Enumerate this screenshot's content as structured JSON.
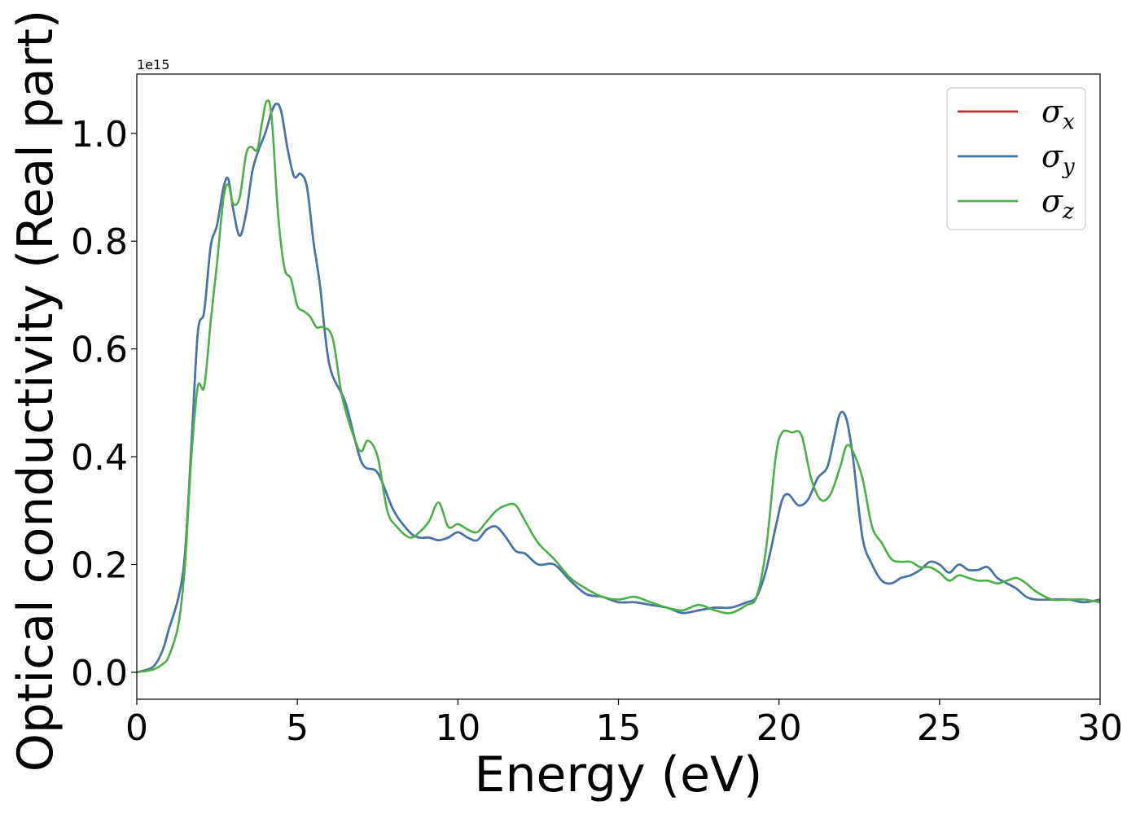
{
  "chart_data": {
    "type": "line",
    "title": "",
    "xlabel": "Energy (eV)",
    "ylabel": "Optical conductivity (Real part)",
    "y_offset_label": "1e15",
    "xlim": [
      0,
      30
    ],
    "ylim": [
      -0.05,
      1.11
    ],
    "xticks": [
      0,
      5,
      10,
      15,
      20,
      25,
      30
    ],
    "xtick_labels": [
      "0",
      "5",
      "10",
      "15",
      "20",
      "25",
      "30"
    ],
    "yticks": [
      0.0,
      0.2,
      0.4,
      0.6,
      0.8,
      1.0
    ],
    "ytick_labels": [
      "0.0",
      "0.2",
      "0.4",
      "0.6",
      "0.8",
      "1.0"
    ],
    "grid": false,
    "legend_position": "top-right",
    "legend": [
      {
        "symbol": "σ",
        "sub": "x",
        "color": "#d62728"
      },
      {
        "symbol": "σ",
        "sub": "y",
        "color": "#4477aa"
      },
      {
        "symbol": "σ",
        "sub": "z",
        "color": "#4daf4a"
      }
    ],
    "series": [
      {
        "name": "σx",
        "color": "#d62728",
        "x": [
          0,
          0.5,
          0.8,
          1.0,
          1.3,
          1.5,
          1.7,
          1.9,
          2.1,
          2.3,
          2.5,
          2.7,
          2.85,
          3.0,
          3.2,
          3.4,
          3.6,
          3.8,
          4.0,
          4.2,
          4.35,
          4.5,
          4.7,
          4.9,
          5.1,
          5.3,
          5.5,
          5.7,
          6.0,
          6.5,
          7.0,
          7.5,
          8.0,
          8.5,
          8.8,
          9.1,
          9.4,
          9.7,
          10.0,
          10.3,
          10.6,
          10.9,
          11.2,
          11.5,
          11.8,
          12.1,
          12.5,
          13.0,
          13.5,
          14.0,
          14.5,
          15.0,
          15.5,
          16.0,
          16.5,
          17.0,
          17.5,
          18.0,
          18.5,
          19.0,
          19.3,
          19.6,
          19.9,
          20.1,
          20.3,
          20.6,
          20.9,
          21.2,
          21.5,
          21.7,
          21.9,
          22.1,
          22.3,
          22.6,
          22.9,
          23.2,
          23.5,
          23.8,
          24.1,
          24.4,
          24.7,
          25.0,
          25.3,
          25.6,
          25.9,
          26.2,
          26.5,
          26.8,
          27.1,
          27.4,
          27.7,
          28.0,
          28.5,
          29.0,
          29.5,
          30.0
        ],
        "values": [
          0.0,
          0.01,
          0.04,
          0.08,
          0.14,
          0.22,
          0.42,
          0.63,
          0.67,
          0.79,
          0.83,
          0.9,
          0.915,
          0.86,
          0.81,
          0.85,
          0.93,
          0.97,
          1.0,
          1.04,
          1.055,
          1.04,
          0.97,
          0.92,
          0.925,
          0.9,
          0.8,
          0.72,
          0.57,
          0.5,
          0.39,
          0.37,
          0.3,
          0.26,
          0.25,
          0.25,
          0.245,
          0.25,
          0.26,
          0.25,
          0.245,
          0.265,
          0.27,
          0.25,
          0.225,
          0.22,
          0.2,
          0.2,
          0.17,
          0.145,
          0.14,
          0.13,
          0.13,
          0.125,
          0.12,
          0.11,
          0.115,
          0.12,
          0.12,
          0.13,
          0.14,
          0.19,
          0.27,
          0.32,
          0.33,
          0.31,
          0.32,
          0.36,
          0.38,
          0.43,
          0.48,
          0.47,
          0.4,
          0.25,
          0.2,
          0.17,
          0.165,
          0.175,
          0.18,
          0.19,
          0.205,
          0.2,
          0.185,
          0.2,
          0.19,
          0.19,
          0.195,
          0.175,
          0.165,
          0.155,
          0.14,
          0.135,
          0.135,
          0.135,
          0.13,
          0.135
        ]
      },
      {
        "name": "σy",
        "color": "#4477aa",
        "x": [
          0,
          0.5,
          0.8,
          1.0,
          1.3,
          1.5,
          1.7,
          1.9,
          2.1,
          2.3,
          2.5,
          2.7,
          2.85,
          3.0,
          3.2,
          3.4,
          3.6,
          3.8,
          4.0,
          4.2,
          4.35,
          4.5,
          4.7,
          4.9,
          5.1,
          5.3,
          5.5,
          5.7,
          6.0,
          6.5,
          7.0,
          7.5,
          8.0,
          8.5,
          8.8,
          9.1,
          9.4,
          9.7,
          10.0,
          10.3,
          10.6,
          10.9,
          11.2,
          11.5,
          11.8,
          12.1,
          12.5,
          13.0,
          13.5,
          14.0,
          14.5,
          15.0,
          15.5,
          16.0,
          16.5,
          17.0,
          17.5,
          18.0,
          18.5,
          19.0,
          19.3,
          19.6,
          19.9,
          20.1,
          20.3,
          20.6,
          20.9,
          21.2,
          21.5,
          21.7,
          21.9,
          22.1,
          22.3,
          22.6,
          22.9,
          23.2,
          23.5,
          23.8,
          24.1,
          24.4,
          24.7,
          25.0,
          25.3,
          25.6,
          25.9,
          26.2,
          26.5,
          26.8,
          27.1,
          27.4,
          27.7,
          28.0,
          28.5,
          29.0,
          29.5,
          30.0
        ],
        "values": [
          0.0,
          0.01,
          0.04,
          0.08,
          0.14,
          0.22,
          0.42,
          0.63,
          0.67,
          0.79,
          0.83,
          0.9,
          0.915,
          0.86,
          0.81,
          0.85,
          0.93,
          0.97,
          1.0,
          1.04,
          1.055,
          1.04,
          0.97,
          0.92,
          0.925,
          0.9,
          0.8,
          0.72,
          0.57,
          0.5,
          0.39,
          0.37,
          0.3,
          0.26,
          0.25,
          0.25,
          0.245,
          0.25,
          0.26,
          0.25,
          0.245,
          0.265,
          0.27,
          0.25,
          0.225,
          0.22,
          0.2,
          0.2,
          0.17,
          0.145,
          0.14,
          0.13,
          0.13,
          0.125,
          0.12,
          0.11,
          0.115,
          0.12,
          0.12,
          0.13,
          0.14,
          0.19,
          0.27,
          0.32,
          0.33,
          0.31,
          0.32,
          0.36,
          0.38,
          0.43,
          0.48,
          0.47,
          0.4,
          0.25,
          0.2,
          0.17,
          0.165,
          0.175,
          0.18,
          0.19,
          0.205,
          0.2,
          0.185,
          0.2,
          0.19,
          0.19,
          0.195,
          0.175,
          0.165,
          0.155,
          0.14,
          0.135,
          0.135,
          0.135,
          0.13,
          0.135
        ]
      },
      {
        "name": "σz",
        "color": "#4daf4a",
        "x": [
          0,
          0.5,
          0.8,
          1.0,
          1.3,
          1.5,
          1.7,
          1.9,
          2.1,
          2.3,
          2.5,
          2.7,
          2.85,
          3.0,
          3.2,
          3.4,
          3.55,
          3.75,
          3.9,
          4.05,
          4.2,
          4.4,
          4.6,
          4.8,
          5.0,
          5.2,
          5.4,
          5.6,
          5.8,
          6.1,
          6.4,
          6.8,
          7.0,
          7.2,
          7.5,
          7.8,
          8.1,
          8.5,
          8.8,
          9.1,
          9.4,
          9.7,
          10.0,
          10.3,
          10.6,
          10.9,
          11.2,
          11.5,
          11.8,
          12.1,
          12.5,
          13.0,
          13.5,
          14.0,
          14.5,
          15.0,
          15.5,
          16.0,
          16.5,
          17.0,
          17.5,
          18.0,
          18.5,
          19.0,
          19.3,
          19.6,
          19.9,
          20.1,
          20.4,
          20.7,
          21.0,
          21.3,
          21.6,
          21.9,
          22.1,
          22.3,
          22.6,
          22.9,
          23.2,
          23.5,
          23.8,
          24.1,
          24.4,
          24.7,
          25.0,
          25.3,
          25.6,
          25.9,
          26.2,
          26.5,
          26.8,
          27.1,
          27.4,
          27.7,
          28.0,
          28.5,
          29.0,
          29.5,
          30.0
        ],
        "values": [
          0.0,
          0.005,
          0.015,
          0.03,
          0.09,
          0.2,
          0.4,
          0.53,
          0.53,
          0.65,
          0.76,
          0.88,
          0.905,
          0.87,
          0.88,
          0.96,
          0.975,
          0.97,
          1.02,
          1.06,
          1.03,
          0.85,
          0.75,
          0.73,
          0.68,
          0.67,
          0.66,
          0.64,
          0.64,
          0.62,
          0.51,
          0.43,
          0.41,
          0.43,
          0.4,
          0.3,
          0.27,
          0.25,
          0.26,
          0.28,
          0.315,
          0.27,
          0.275,
          0.265,
          0.26,
          0.28,
          0.3,
          0.31,
          0.31,
          0.28,
          0.24,
          0.21,
          0.175,
          0.155,
          0.14,
          0.135,
          0.14,
          0.13,
          0.12,
          0.115,
          0.125,
          0.115,
          0.11,
          0.125,
          0.14,
          0.23,
          0.4,
          0.445,
          0.445,
          0.44,
          0.36,
          0.32,
          0.33,
          0.38,
          0.42,
          0.41,
          0.36,
          0.27,
          0.24,
          0.21,
          0.205,
          0.205,
          0.195,
          0.195,
          0.185,
          0.17,
          0.18,
          0.175,
          0.17,
          0.17,
          0.165,
          0.17,
          0.175,
          0.165,
          0.15,
          0.135,
          0.135,
          0.135,
          0.13
        ]
      }
    ]
  }
}
